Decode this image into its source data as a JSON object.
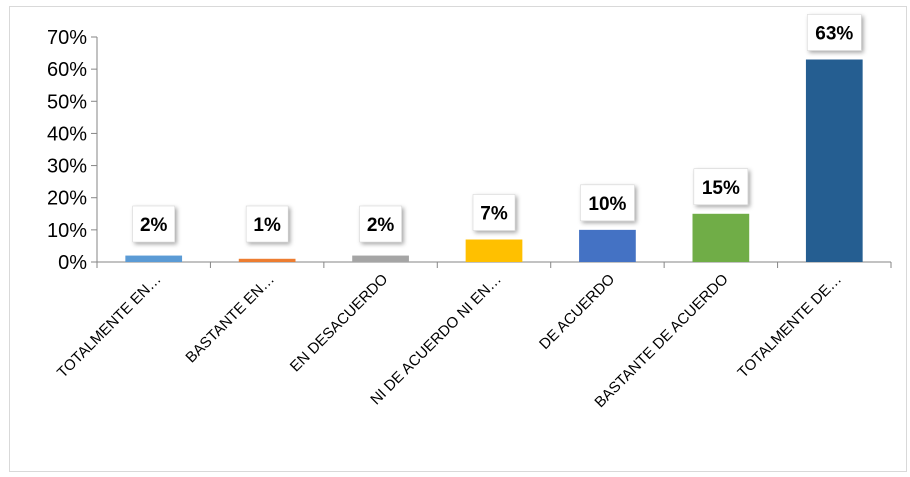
{
  "chart_data": {
    "type": "bar",
    "title": "",
    "xlabel": "",
    "ylabel": "",
    "categories": [
      "TOTALMENTE EN…",
      "BASTANTE EN…",
      "EN DESACUERDO",
      "NI DE ACUERDO NI EN…",
      "DE ACUERDO",
      "BASTANTE DE ACUERDO",
      "TOTALMENTE DE…"
    ],
    "values": [
      2,
      1,
      2,
      7,
      10,
      15,
      63
    ],
    "data_labels": [
      "2%",
      "1%",
      "2%",
      "7%",
      "10%",
      "15%",
      "63%"
    ],
    "colors": [
      "#5b9bd5",
      "#ed7d31",
      "#a5a5a5",
      "#ffc000",
      "#4472c4",
      "#70ad47",
      "#255e91"
    ],
    "ylim": [
      0,
      70
    ],
    "yticks": [
      0,
      10,
      20,
      30,
      40,
      50,
      60,
      70
    ],
    "ytick_labels": [
      "0%",
      "10%",
      "20%",
      "30%",
      "40%",
      "50%",
      "60%",
      "70%"
    ],
    "grid": false,
    "legend": "none"
  }
}
